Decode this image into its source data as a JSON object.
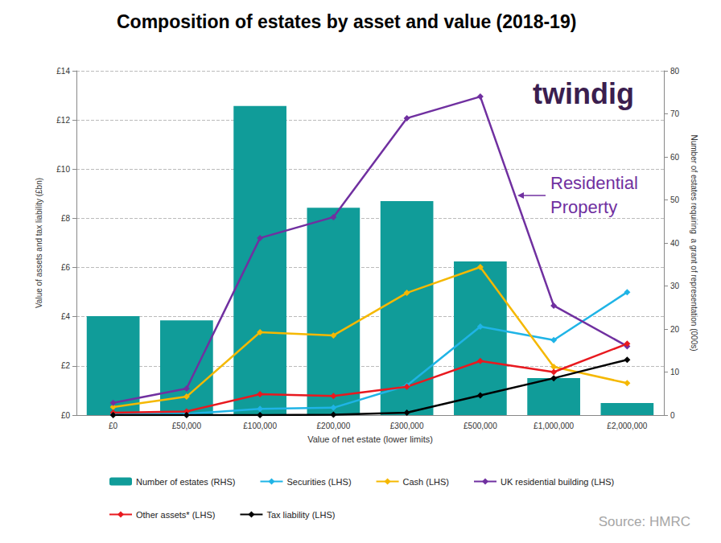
{
  "chart_data": {
    "type": "bar",
    "title": "Composition of estates by asset and value (2018-19)",
    "logo_text": "twindig",
    "annotations": [
      "Residential Property"
    ],
    "source": "Source: HMRC",
    "xlabel": "Value of net estate (lower limits)",
    "ylabel": "Value of assets and tax liability (£bn)",
    "y2label": "Number of estates requiring  a grant of representation (000s)",
    "categories": [
      "£0",
      "£50,000",
      "£100,000",
      "£200,000",
      "£300,000",
      "£500,000",
      "£1,000,000",
      "£2,000,000"
    ],
    "ylim": [
      0,
      14
    ],
    "yticks": [
      {
        "value": 0,
        "label": "£0"
      },
      {
        "value": 2,
        "label": "£2"
      },
      {
        "value": 4,
        "label": "£4"
      },
      {
        "value": 6,
        "label": "£6"
      },
      {
        "value": 8,
        "label": "£8"
      },
      {
        "value": 10,
        "label": "£10"
      },
      {
        "value": 12,
        "label": "£12"
      },
      {
        "value": 14,
        "label": "£14"
      }
    ],
    "y2lim": [
      0,
      80
    ],
    "y2ticks": [
      0,
      10,
      20,
      30,
      40,
      50,
      60,
      70,
      80
    ],
    "grid": true,
    "legend": "bottom",
    "series": [
      {
        "name": "Number of estates (RHS)",
        "type": "bar",
        "axis": "y2",
        "color": "#109c99",
        "values": [
          23,
          22,
          71.8,
          48.2,
          49.7,
          35.7,
          8.6,
          2.8
        ]
      },
      {
        "name": "Securities (LHS)",
        "type": "line",
        "color": "#1fb4e6",
        "marker": "diamond",
        "values": [
          0.05,
          0.05,
          0.25,
          0.3,
          1.2,
          3.6,
          3.05,
          5.0
        ]
      },
      {
        "name": "Cash (LHS)",
        "type": "line",
        "color": "#f5b800",
        "marker": "diamond",
        "values": [
          0.33,
          0.75,
          3.37,
          3.24,
          4.97,
          6.02,
          1.96,
          1.3
        ]
      },
      {
        "name": "UK residential building (LHS)",
        "type": "line",
        "color": "#7030a0",
        "marker": "diamond",
        "values": [
          0.5,
          1.08,
          7.2,
          8.05,
          12.07,
          12.95,
          4.45,
          2.8
        ]
      },
      {
        "name": "Other assets* (LHS)",
        "type": "line",
        "color": "#e8191f",
        "marker": "diamond",
        "values": [
          0.1,
          0.15,
          0.85,
          0.78,
          1.15,
          2.2,
          1.75,
          2.9
        ]
      },
      {
        "name": "Tax liability (LHS)",
        "type": "line",
        "color": "#000000",
        "marker": "diamond",
        "values": [
          0,
          0,
          0,
          0.02,
          0.1,
          0.8,
          1.5,
          2.25
        ]
      }
    ]
  }
}
